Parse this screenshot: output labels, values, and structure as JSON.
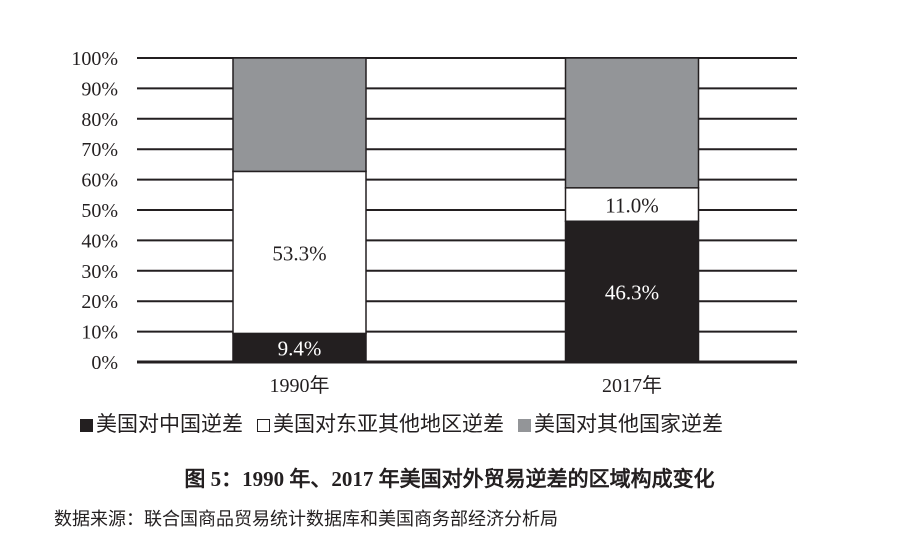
{
  "chart_data": {
    "type": "bar",
    "stacked": true,
    "categories": [
      "1990年",
      "2017年"
    ],
    "series": [
      {
        "name": "美国对中国逆差",
        "values": [
          9.4,
          46.3
        ],
        "labels": [
          "9.4%",
          "46.3%"
        ],
        "color": "#231f20"
      },
      {
        "name": "美国对东亚其他地区逆差",
        "values": [
          53.3,
          11.0
        ],
        "labels": [
          "53.3%",
          "11.0%"
        ],
        "color": "#ffffff"
      },
      {
        "name": "美国对其他国家逆差",
        "values": [
          37.3,
          42.7
        ],
        "labels": [
          "",
          ""
        ],
        "color": "#939598"
      }
    ],
    "ylim": [
      0,
      100
    ],
    "yticks": [
      "0%",
      "10%",
      "20%",
      "30%",
      "40%",
      "50%",
      "60%",
      "70%",
      "80%",
      "90%",
      "100%"
    ],
    "grid": true,
    "legend": "bottom",
    "title": "图 5：1990 年、2017 年美国对外贸易逆差的区域构成变化",
    "source": "数据来源：联合国商品贸易统计数据库和美国商务部经济分析局"
  }
}
